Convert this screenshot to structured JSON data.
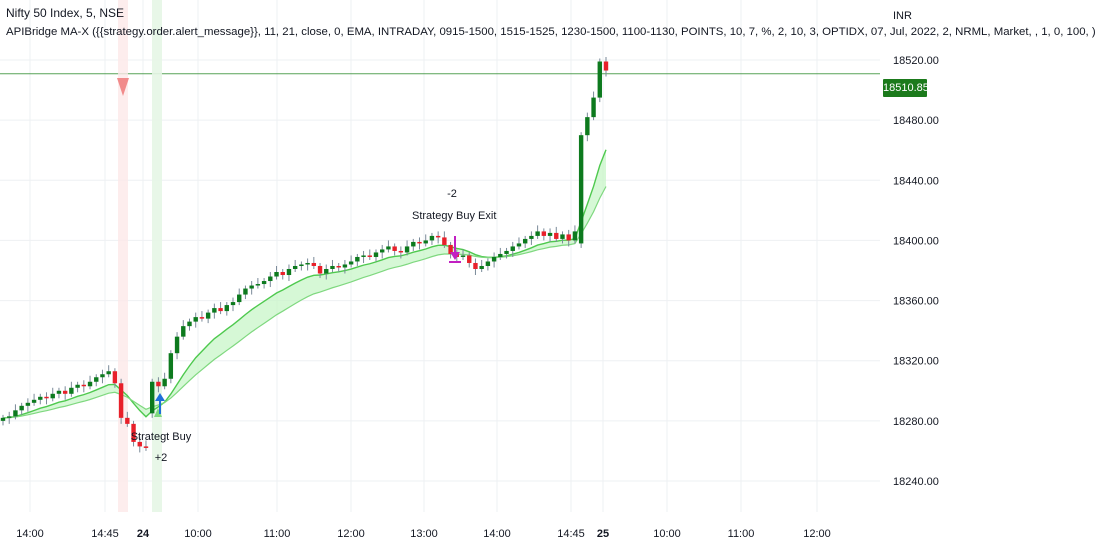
{
  "header": {
    "title": "Nifty 50 Index, 5, NSE",
    "study": "APIBridge MA-X ({{strategy.order.alert_message}}, 11, 21, close, 0, EMA, INTRADAY, 0915-1500, 1515-1525, 1230-1500, 1100-1130, POINTS, 10, 7, %, 2, 10, 3, OPTIDX, 07, Jul, 2022, 2, NRML, Market, , 1, 0, 100, )"
  },
  "currency": "INR",
  "last_price_label": "18510.85",
  "colors": {
    "up": "#0d7a1e",
    "down": "#e8202a",
    "ma_fast": "#4ec94e",
    "ma_fill": "#c8f5c8",
    "marker_sell": "#f08080",
    "marker_buy": "#1e6fd9",
    "marker_exit": "#c21fc2",
    "price_line": "#2e8b2e"
  },
  "annotations": {
    "exit_qty": "-2",
    "exit_label": "Strategy Buy Exit",
    "buy_label": "Strategt Buy",
    "buy_qty": "+2"
  },
  "chart_data": {
    "type": "candlestick",
    "title": "Nifty 50 Index, 5, NSE",
    "xlabel": "",
    "ylabel": "",
    "ylim": [
      18225,
      18530
    ],
    "y_ticks": [
      18520,
      18480,
      18440,
      18400,
      18360,
      18320,
      18280,
      18240
    ],
    "x_ticks": [
      {
        "label": "14:00",
        "bold": false
      },
      {
        "label": "14:45",
        "bold": false
      },
      {
        "label": "24",
        "bold": true
      },
      {
        "label": "10:00",
        "bold": false
      },
      {
        "label": "11:00",
        "bold": false
      },
      {
        "label": "12:00",
        "bold": false
      },
      {
        "label": "13:00",
        "bold": false
      },
      {
        "label": "14:00",
        "bold": false
      },
      {
        "label": "14:45",
        "bold": false
      },
      {
        "label": "25",
        "bold": true
      },
      {
        "label": "10:00",
        "bold": false
      },
      {
        "label": "11:00",
        "bold": false
      },
      {
        "label": "12:00",
        "bold": false
      }
    ],
    "last_price": 18510.85,
    "closes": [
      18282,
      18283,
      18287,
      18290,
      18292,
      18294,
      18296,
      18295,
      18298,
      18300,
      18298,
      18302,
      18304,
      18303,
      18306,
      18309,
      18311,
      18313,
      18305,
      18282,
      18278,
      18266,
      18263,
      18262,
      18306,
      18303,
      18308,
      18325,
      18336,
      18343,
      18346,
      18349,
      18348,
      18352,
      18355,
      18353,
      18357,
      18359,
      18364,
      18368,
      18370,
      18371,
      18373,
      18376,
      18379,
      18377,
      18381,
      18383,
      18384,
      18385,
      18383,
      18378,
      18381,
      18383,
      18382,
      18384,
      18386,
      18389,
      18390,
      18389,
      18392,
      18394,
      18396,
      18393,
      18392,
      18396,
      18399,
      18398,
      18400,
      18403,
      18402,
      18397,
      18391,
      18389,
      18390,
      18385,
      18381,
      18383,
      18386,
      18389,
      18391,
      18393,
      18396,
      18398,
      18401,
      18403,
      18406,
      18403,
      18405,
      18401,
      18404,
      18400,
      18406,
      18470,
      18482,
      18495,
      18519,
      18513
    ]
  }
}
